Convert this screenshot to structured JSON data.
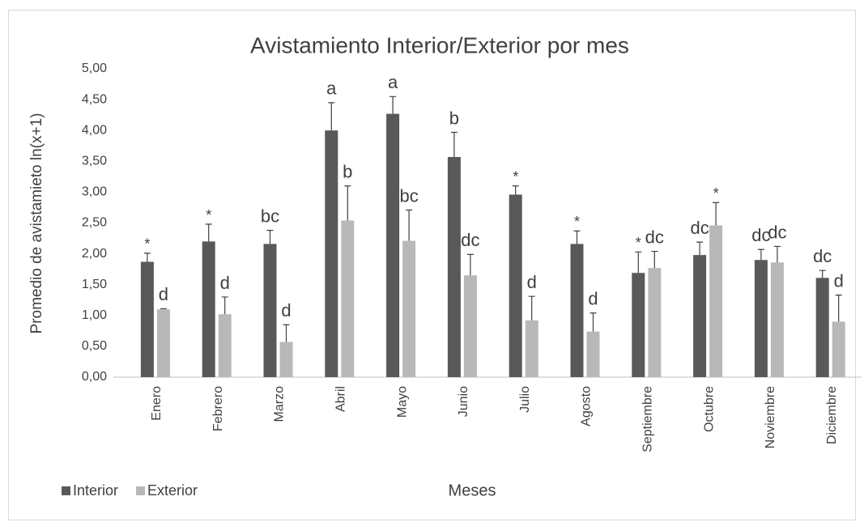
{
  "chart_data": {
    "type": "bar",
    "title": "Avistamiento Interior/Exterior por mes",
    "x_label": "Meses",
    "y_label": "Promedio de avistamieto ln(x+1)",
    "categories": [
      "Enero",
      "Febrero",
      "Marzo",
      "Abril",
      "Mayo",
      "Junio",
      "Julio",
      "Agosto",
      "Septiembre",
      "Octubre",
      "Noviembre",
      "Diciembre"
    ],
    "series": [
      {
        "name": "Interior",
        "color": "#595959",
        "values": [
          1.87,
          2.2,
          2.16,
          4.0,
          4.27,
          3.57,
          2.96,
          2.16,
          1.69,
          1.98,
          1.9,
          1.61
        ],
        "errors": [
          0.14,
          0.28,
          0.22,
          0.45,
          0.28,
          0.4,
          0.14,
          0.21,
          0.34,
          0.21,
          0.17,
          0.12
        ],
        "annotations": [
          "*",
          "*",
          "bc",
          "a",
          "a",
          "b",
          "*",
          "*",
          "*",
          "dc",
          "dc",
          "dc"
        ]
      },
      {
        "name": "Exterior",
        "color": "#b8b8b8",
        "values": [
          1.1,
          1.02,
          0.57,
          2.54,
          2.21,
          1.65,
          0.92,
          0.74,
          1.77,
          2.46,
          1.86,
          0.9
        ],
        "errors": [
          0.01,
          0.28,
          0.28,
          0.56,
          0.5,
          0.34,
          0.39,
          0.3,
          0.27,
          0.37,
          0.26,
          0.43
        ],
        "annotations": [
          "d",
          "d",
          "d",
          "b",
          "bc",
          "dc",
          "d",
          "d",
          "dc",
          "*",
          "dc",
          "d"
        ]
      }
    ],
    "ylim": [
      0,
      5
    ],
    "yticks": [
      {
        "value": 0,
        "label": "0,00"
      },
      {
        "value": 0.5,
        "label": "0,50"
      },
      {
        "value": 1,
        "label": "1,00"
      },
      {
        "value": 1.5,
        "label": "1,50"
      },
      {
        "value": 2,
        "label": "2,00"
      },
      {
        "value": 2.5,
        "label": "2,50"
      },
      {
        "value": 3,
        "label": "3,00"
      },
      {
        "value": 3.5,
        "label": "3,50"
      },
      {
        "value": 4,
        "label": "4,00"
      },
      {
        "value": 4.5,
        "label": "4,50"
      },
      {
        "value": 5,
        "label": "5,00"
      }
    ],
    "grid": false,
    "legend": "bottom-left"
  }
}
